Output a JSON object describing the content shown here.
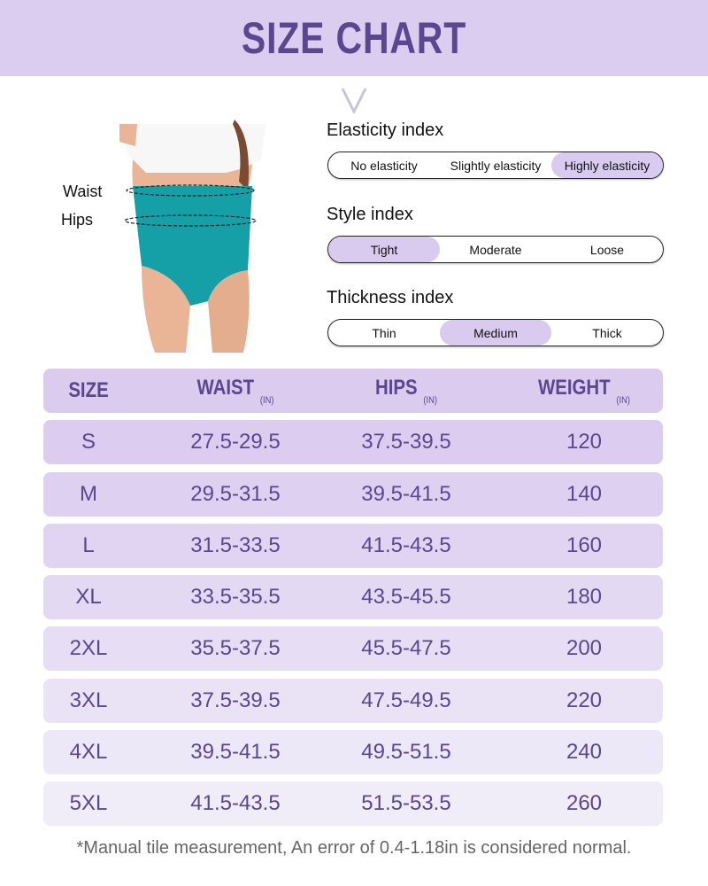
{
  "header": {
    "title": "SIZE CHART",
    "accent": "#dbcdef",
    "text_color": "#5b4690"
  },
  "model": {
    "waist_label": "Waist",
    "hips_label": "Hips"
  },
  "indexes": [
    {
      "label": "Elasticity index",
      "options": [
        "No elasticity",
        "Slightly elasticity",
        "Highly elasticity"
      ],
      "selected": 2
    },
    {
      "label": "Style index",
      "options": [
        "Tight",
        "Moderate",
        "Loose"
      ],
      "selected": 0
    },
    {
      "label": "Thickness index",
      "options": [
        "Thin",
        "Medium",
        "Thick"
      ],
      "selected": 1
    }
  ],
  "table": {
    "headers": [
      {
        "label": "SIZE",
        "unit": ""
      },
      {
        "label": "WAIST",
        "unit": "(IN)"
      },
      {
        "label": "HIPS",
        "unit": "(IN)"
      },
      {
        "label": "WEIGHT",
        "unit": "(IN)"
      }
    ],
    "rows": [
      [
        "S",
        "27.5-29.5",
        "37.5-39.5",
        "120"
      ],
      [
        "M",
        "29.5-31.5",
        "39.5-41.5",
        "140"
      ],
      [
        "L",
        "31.5-33.5",
        "41.5-43.5",
        "160"
      ],
      [
        "XL",
        "33.5-35.5",
        "43.5-45.5",
        "180"
      ],
      [
        "2XL",
        "35.5-37.5",
        "45.5-47.5",
        "200"
      ],
      [
        "3XL",
        "37.5-39.5",
        "47.5-49.5",
        "220"
      ],
      [
        "4XL",
        "39.5-41.5",
        "49.5-51.5",
        "240"
      ],
      [
        "5XL",
        "41.5-43.5",
        "51.5-53.5",
        "260"
      ]
    ]
  },
  "footnote": "*Manual tile measurement, An error of 0.4-1.18in is considered normal."
}
